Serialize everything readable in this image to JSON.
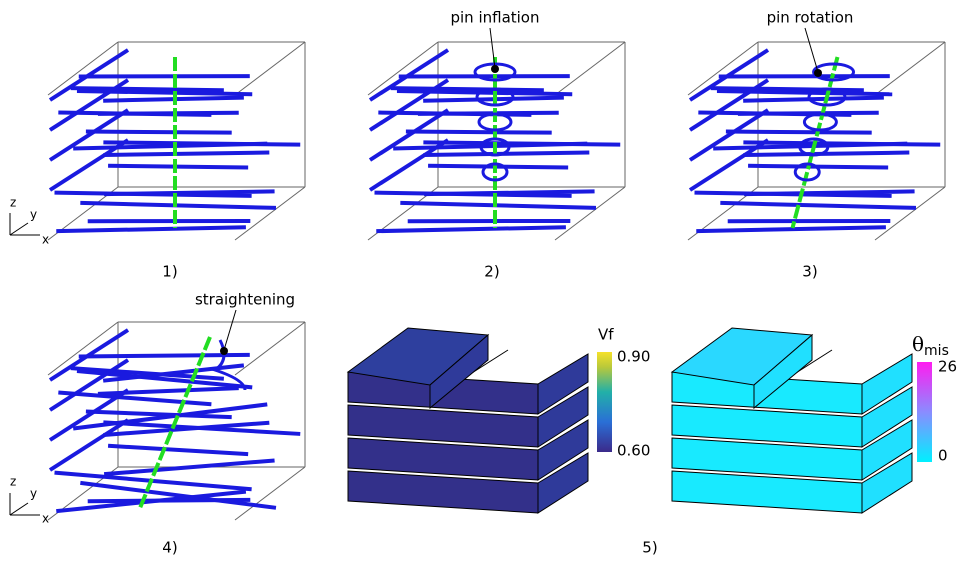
{
  "panels": [
    {
      "label": "1)"
    },
    {
      "label": "2)",
      "annotation": "pin inflation"
    },
    {
      "label": "3)",
      "annotation": "pin rotation"
    },
    {
      "label": "4)",
      "annotation": "straightening"
    },
    {
      "label": "5)"
    }
  ],
  "axes_triad": {
    "z": "z",
    "y": "y",
    "x": "x"
  },
  "colorbars": [
    {
      "title": "Vf",
      "top": "0.90",
      "bottom": "0.60"
    },
    {
      "title": "θ",
      "subscript": "mis",
      "top": "26",
      "bottom": "0"
    }
  ]
}
